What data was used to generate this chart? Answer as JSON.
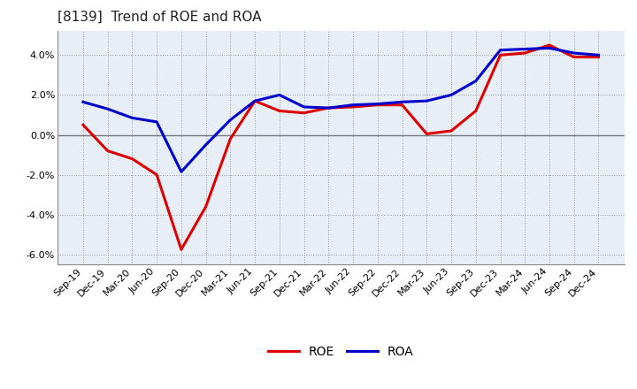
{
  "title": "[8139]  Trend of ROE and ROA",
  "x_labels": [
    "Sep-19",
    "Dec-19",
    "Mar-20",
    "Jun-20",
    "Sep-20",
    "Dec-20",
    "Mar-21",
    "Jun-21",
    "Sep-21",
    "Dec-21",
    "Mar-22",
    "Jun-22",
    "Sep-22",
    "Dec-22",
    "Mar-23",
    "Jun-23",
    "Sep-23",
    "Dec-23",
    "Mar-24",
    "Jun-24",
    "Sep-24",
    "Dec-24"
  ],
  "roe": [
    0.5,
    -0.8,
    -1.2,
    -2.0,
    -5.75,
    -3.6,
    -0.2,
    1.7,
    1.2,
    1.1,
    1.35,
    1.4,
    1.5,
    1.5,
    0.05,
    0.2,
    1.2,
    4.0,
    4.1,
    4.5,
    3.9,
    3.9
  ],
  "roa": [
    1.65,
    1.3,
    0.85,
    0.65,
    -1.85,
    -0.5,
    0.75,
    1.7,
    2.0,
    1.4,
    1.35,
    1.5,
    1.55,
    1.65,
    1.7,
    2.0,
    2.7,
    4.25,
    4.3,
    4.35,
    4.1,
    4.0
  ],
  "roe_color": "#dd0000",
  "roa_color": "#0000cc",
  "bg_color": "#ffffff",
  "plot_bg_color": "#e8eef5",
  "grid_color": "#999999",
  "ylim": [
    -6.5,
    5.2
  ],
  "yticks": [
    -6.0,
    -4.0,
    -2.0,
    0.0,
    2.0,
    4.0
  ],
  "zero_line_color": "#777777",
  "title_fontsize": 11,
  "tick_fontsize": 8,
  "legend_fontsize": 10,
  "line_width": 2.2
}
